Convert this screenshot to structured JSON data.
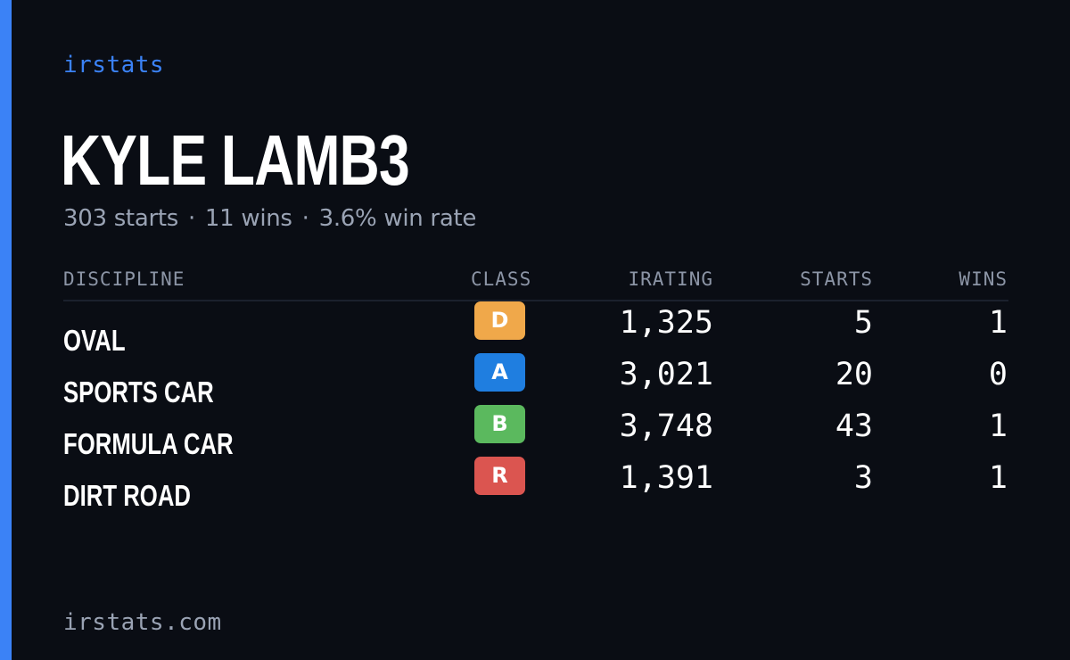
{
  "theme": {
    "accent": "#3b82f6",
    "background": "#0a0d14"
  },
  "brand": "irstats",
  "driver": {
    "name": "KYLE LAMB3",
    "starts": "303 starts",
    "wins": "11 wins",
    "win_rate": "3.6% win rate",
    "separator": "·"
  },
  "table": {
    "headers": {
      "discipline": "DISCIPLINE",
      "class": "CLASS",
      "irating": "IRATING",
      "starts": "STARTS",
      "wins": "WINS"
    },
    "rows": [
      {
        "discipline": "OVAL",
        "class": "D",
        "class_color": "#f0a84a",
        "irating": "1,325",
        "starts": "5",
        "wins": "1"
      },
      {
        "discipline": "SPORTS CAR",
        "class": "A",
        "class_color": "#1f7ee0",
        "irating": "3,021",
        "starts": "20",
        "wins": "0"
      },
      {
        "discipline": "FORMULA CAR",
        "class": "B",
        "class_color": "#5bb95e",
        "irating": "3,748",
        "starts": "43",
        "wins": "1"
      },
      {
        "discipline": "DIRT ROAD",
        "class": "R",
        "class_color": "#db5550",
        "irating": "1,391",
        "starts": "3",
        "wins": "1"
      }
    ]
  },
  "footer": "irstats.com"
}
